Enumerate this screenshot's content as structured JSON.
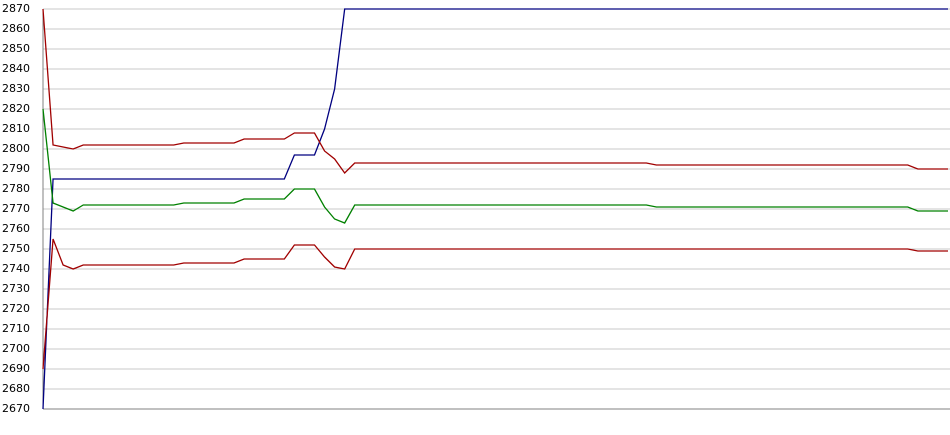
{
  "chart_data": {
    "type": "line",
    "categories": [
      null,
      null,
      null,
      null,
      null,
      null,
      null,
      null,
      null,
      null,
      null,
      null,
      null,
      null,
      null,
      null,
      null,
      null,
      null,
      null,
      null,
      null,
      null,
      null,
      null,
      null,
      null,
      null,
      null,
      null,
      null,
      null,
      null,
      null,
      null,
      null,
      null,
      null,
      null,
      null,
      null,
      null,
      null,
      null,
      null,
      null,
      null,
      null,
      null,
      null,
      null,
      null,
      null,
      null,
      null,
      null,
      null,
      null,
      null,
      null,
      null,
      null,
      null,
      null,
      null,
      null,
      null,
      null,
      null,
      null,
      null,
      null,
      null,
      null,
      null,
      null,
      null,
      null,
      null,
      null,
      null,
      null,
      null,
      null,
      null,
      null,
      null,
      null,
      null,
      null,
      null
    ],
    "series": [
      {
        "color": "#000080",
        "values": [
          2670,
          2785,
          2785,
          2785,
          2785,
          2785,
          2785,
          2785,
          2785,
          2785,
          2785,
          2785,
          2785,
          2785,
          2785,
          2785,
          2785,
          2785,
          2785,
          2785,
          2785,
          2785,
          2785,
          2785,
          2785,
          2797,
          2797,
          2797,
          2810,
          2830,
          2870,
          2870,
          2870,
          2870,
          2870,
          2870,
          2870,
          2870,
          2870,
          2870,
          2870,
          2870,
          2870,
          2870,
          2870,
          2870,
          2870,
          2870,
          2870,
          2870,
          2870,
          2870,
          2870,
          2870,
          2870,
          2870,
          2870,
          2870,
          2870,
          2870,
          2870,
          2870,
          2870,
          2870,
          2870,
          2870,
          2870,
          2870,
          2870,
          2870,
          2870,
          2870,
          2870,
          2870,
          2870,
          2870,
          2870,
          2870,
          2870,
          2870,
          2870,
          2870,
          2870,
          2870,
          2870,
          2870,
          2870,
          2870,
          2870,
          2870,
          2870
        ]
      },
      {
        "color": "#a00000",
        "values": [
          2870,
          2802,
          2801,
          2800,
          2802,
          2802,
          2802,
          2802,
          2802,
          2802,
          2802,
          2802,
          2802,
          2802,
          2803,
          2803,
          2803,
          2803,
          2803,
          2803,
          2805,
          2805,
          2805,
          2805,
          2805,
          2808,
          2808,
          2808,
          2799,
          2795,
          2788,
          2793,
          2793,
          2793,
          2793,
          2793,
          2793,
          2793,
          2793,
          2793,
          2793,
          2793,
          2793,
          2793,
          2793,
          2793,
          2793,
          2793,
          2793,
          2793,
          2793,
          2793,
          2793,
          2793,
          2793,
          2793,
          2793,
          2793,
          2793,
          2793,
          2793,
          2792,
          2792,
          2792,
          2792,
          2792,
          2792,
          2792,
          2792,
          2792,
          2792,
          2792,
          2792,
          2792,
          2792,
          2792,
          2792,
          2792,
          2792,
          2792,
          2792,
          2792,
          2792,
          2792,
          2792,
          2792,
          2792,
          2790,
          2790,
          2790,
          2790
        ]
      },
      {
        "color": "#008000",
        "values": [
          2820,
          2773,
          2771,
          2769,
          2772,
          2772,
          2772,
          2772,
          2772,
          2772,
          2772,
          2772,
          2772,
          2772,
          2773,
          2773,
          2773,
          2773,
          2773,
          2773,
          2775,
          2775,
          2775,
          2775,
          2775,
          2780,
          2780,
          2780,
          2771,
          2765,
          2763,
          2772,
          2772,
          2772,
          2772,
          2772,
          2772,
          2772,
          2772,
          2772,
          2772,
          2772,
          2772,
          2772,
          2772,
          2772,
          2772,
          2772,
          2772,
          2772,
          2772,
          2772,
          2772,
          2772,
          2772,
          2772,
          2772,
          2772,
          2772,
          2772,
          2772,
          2771,
          2771,
          2771,
          2771,
          2771,
          2771,
          2771,
          2771,
          2771,
          2771,
          2771,
          2771,
          2771,
          2771,
          2771,
          2771,
          2771,
          2771,
          2771,
          2771,
          2771,
          2771,
          2771,
          2771,
          2771,
          2771,
          2769,
          2769,
          2769,
          2769
        ]
      },
      {
        "color": "#a00000",
        "values": [
          2690,
          2755,
          2742,
          2740,
          2742,
          2742,
          2742,
          2742,
          2742,
          2742,
          2742,
          2742,
          2742,
          2742,
          2743,
          2743,
          2743,
          2743,
          2743,
          2743,
          2745,
          2745,
          2745,
          2745,
          2745,
          2752,
          2752,
          2752,
          2746,
          2741,
          2740,
          2750,
          2750,
          2750,
          2750,
          2750,
          2750,
          2750,
          2750,
          2750,
          2750,
          2750,
          2750,
          2750,
          2750,
          2750,
          2750,
          2750,
          2750,
          2750,
          2750,
          2750,
          2750,
          2750,
          2750,
          2750,
          2750,
          2750,
          2750,
          2750,
          2750,
          2750,
          2750,
          2750,
          2750,
          2750,
          2750,
          2750,
          2750,
          2750,
          2750,
          2750,
          2750,
          2750,
          2750,
          2750,
          2750,
          2750,
          2750,
          2750,
          2750,
          2750,
          2750,
          2750,
          2750,
          2750,
          2750,
          2749,
          2749,
          2749,
          2749
        ]
      }
    ],
    "ylim": [
      2670,
      2870
    ],
    "yticks": [
      2670,
      2680,
      2690,
      2700,
      2710,
      2720,
      2730,
      2740,
      2750,
      2760,
      2770,
      2780,
      2790,
      2800,
      2810,
      2820,
      2830,
      2840,
      2850,
      2860,
      2870
    ],
    "grid": true
  }
}
